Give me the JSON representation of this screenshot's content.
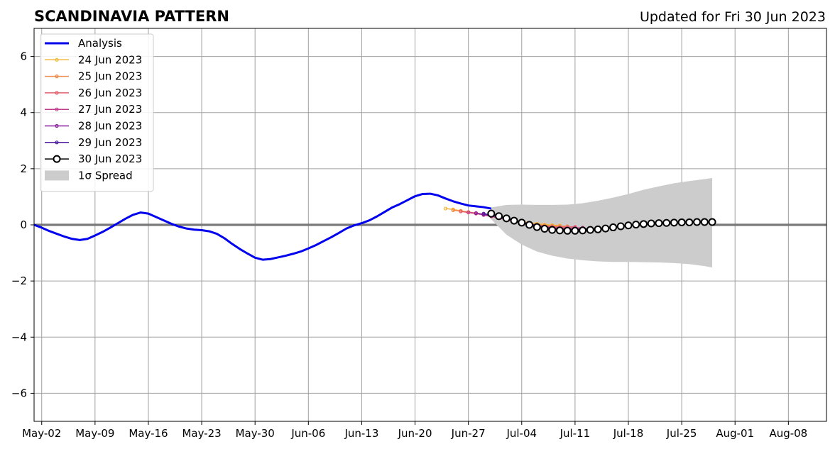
{
  "chart_data": {
    "type": "line",
    "title": "SCANDINAVIA PATTERN",
    "subtitle": "Updated for Fri 30 Jun 2023",
    "xlabel": "",
    "ylabel": "",
    "x_range": [
      "2023-05-01",
      "2023-08-13"
    ],
    "ylim": [
      -7,
      7
    ],
    "y_ticks": [
      -6,
      -4,
      -2,
      0,
      2,
      4,
      6
    ],
    "y_tick_labels": [
      "−6",
      "−4",
      "−2",
      "0",
      "2",
      "4",
      "6"
    ],
    "x_ticks": [
      "2023-05-02",
      "2023-05-09",
      "2023-05-16",
      "2023-05-23",
      "2023-05-30",
      "2023-06-06",
      "2023-06-13",
      "2023-06-20",
      "2023-06-27",
      "2023-07-04",
      "2023-07-11",
      "2023-07-18",
      "2023-07-25",
      "2023-08-01",
      "2023-08-08"
    ],
    "x_tick_labels": [
      "May-02",
      "May-09",
      "May-16",
      "May-23",
      "May-30",
      "Jun-06",
      "Jun-13",
      "Jun-20",
      "Jun-27",
      "Jul-04",
      "Jul-11",
      "Jul-18",
      "Jul-25",
      "Aug-01",
      "Aug-08"
    ],
    "grid": true,
    "legend_position": "top-left",
    "zero_line": 0,
    "series": [
      {
        "name": "Analysis",
        "color": "#0000ee",
        "style": "thick-line",
        "x": [
          "2023-05-01",
          "2023-05-02",
          "2023-05-03",
          "2023-05-04",
          "2023-05-05",
          "2023-05-06",
          "2023-05-07",
          "2023-05-08",
          "2023-05-09",
          "2023-05-10",
          "2023-05-11",
          "2023-05-12",
          "2023-05-13",
          "2023-05-14",
          "2023-05-15",
          "2023-05-16",
          "2023-05-17",
          "2023-05-18",
          "2023-05-19",
          "2023-05-20",
          "2023-05-21",
          "2023-05-22",
          "2023-05-23",
          "2023-05-24",
          "2023-05-25",
          "2023-05-26",
          "2023-05-27",
          "2023-05-28",
          "2023-05-29",
          "2023-05-30",
          "2023-05-31",
          "2023-06-01",
          "2023-06-02",
          "2023-06-03",
          "2023-06-04",
          "2023-06-05",
          "2023-06-06",
          "2023-06-07",
          "2023-06-08",
          "2023-06-09",
          "2023-06-10",
          "2023-06-11",
          "2023-06-12",
          "2023-06-13",
          "2023-06-14",
          "2023-06-15",
          "2023-06-16",
          "2023-06-17",
          "2023-06-18",
          "2023-06-19",
          "2023-06-20",
          "2023-06-21",
          "2023-06-22",
          "2023-06-23",
          "2023-06-24",
          "2023-06-25",
          "2023-06-26",
          "2023-06-27",
          "2023-06-28",
          "2023-06-29",
          "2023-06-30"
        ],
        "values": [
          0.0,
          -0.1,
          -0.22,
          -0.32,
          -0.42,
          -0.5,
          -0.54,
          -0.5,
          -0.38,
          -0.25,
          -0.1,
          0.06,
          0.22,
          0.36,
          0.44,
          0.4,
          0.28,
          0.16,
          0.04,
          -0.06,
          -0.13,
          -0.17,
          -0.19,
          -0.23,
          -0.32,
          -0.48,
          -0.68,
          -0.86,
          -1.02,
          -1.17,
          -1.24,
          -1.22,
          -1.16,
          -1.1,
          -1.03,
          -0.95,
          -0.84,
          -0.72,
          -0.58,
          -0.44,
          -0.29,
          -0.13,
          -0.02,
          0.06,
          0.16,
          0.3,
          0.46,
          0.62,
          0.74,
          0.88,
          1.02,
          1.1,
          1.11,
          1.05,
          0.94,
          0.84,
          0.76,
          0.69,
          0.66,
          0.63,
          0.58
        ]
      },
      {
        "name": "24 Jun 2023",
        "color": "#f5b73a",
        "style": "small-dots",
        "x": [
          "2023-06-24",
          "2023-06-25",
          "2023-06-26",
          "2023-06-27",
          "2023-06-28",
          "2023-06-29",
          "2023-06-30",
          "2023-07-01",
          "2023-07-02",
          "2023-07-03",
          "2023-07-04",
          "2023-07-05",
          "2023-07-06",
          "2023-07-07",
          "2023-07-08",
          "2023-07-09"
        ],
        "values": [
          0.58,
          0.55,
          0.5,
          0.46,
          0.42,
          0.38,
          0.33,
          0.27,
          0.21,
          0.16,
          0.12,
          0.08,
          0.04,
          0.01,
          -0.01,
          -0.02
        ]
      },
      {
        "name": "25 Jun 2023",
        "color": "#f08a4b",
        "style": "small-dots",
        "x": [
          "2023-06-25",
          "2023-06-26",
          "2023-06-27",
          "2023-06-28",
          "2023-06-29",
          "2023-06-30",
          "2023-07-01",
          "2023-07-02",
          "2023-07-03",
          "2023-07-04",
          "2023-07-05",
          "2023-07-06",
          "2023-07-07",
          "2023-07-08",
          "2023-07-09",
          "2023-07-10"
        ],
        "values": [
          0.52,
          0.49,
          0.45,
          0.41,
          0.37,
          0.32,
          0.26,
          0.2,
          0.14,
          0.09,
          0.05,
          0.01,
          -0.02,
          -0.04,
          -0.05,
          -0.05
        ]
      },
      {
        "name": "26 Jun 2023",
        "color": "#e35f6c",
        "style": "small-dots",
        "x": [
          "2023-06-26",
          "2023-06-27",
          "2023-06-28",
          "2023-06-29",
          "2023-06-30",
          "2023-07-01",
          "2023-07-02",
          "2023-07-03",
          "2023-07-04",
          "2023-07-05",
          "2023-07-06",
          "2023-07-07",
          "2023-07-08",
          "2023-07-09",
          "2023-07-10",
          "2023-07-11"
        ],
        "values": [
          0.48,
          0.44,
          0.4,
          0.35,
          0.3,
          0.24,
          0.18,
          0.12,
          0.07,
          0.02,
          -0.02,
          -0.05,
          -0.07,
          -0.08,
          -0.08,
          -0.07
        ]
      },
      {
        "name": "27 Jun 2023",
        "color": "#c43c8c",
        "style": "small-dots",
        "x": [
          "2023-06-27",
          "2023-06-28",
          "2023-06-29",
          "2023-06-30",
          "2023-07-01",
          "2023-07-02",
          "2023-07-03",
          "2023-07-04",
          "2023-07-05",
          "2023-07-06",
          "2023-07-07",
          "2023-07-08",
          "2023-07-09",
          "2023-07-10",
          "2023-07-11",
          "2023-07-12"
        ],
        "values": [
          0.45,
          0.41,
          0.36,
          0.31,
          0.25,
          0.19,
          0.13,
          0.07,
          0.02,
          -0.03,
          -0.07,
          -0.1,
          -0.12,
          -0.12,
          -0.11,
          -0.1
        ]
      },
      {
        "name": "28 Jun 2023",
        "color": "#8e1fa3",
        "style": "small-dots",
        "x": [
          "2023-06-28",
          "2023-06-29",
          "2023-06-30",
          "2023-07-01",
          "2023-07-02",
          "2023-07-03",
          "2023-07-04",
          "2023-07-05",
          "2023-07-06",
          "2023-07-07",
          "2023-07-08",
          "2023-07-09",
          "2023-07-10",
          "2023-07-11",
          "2023-07-12",
          "2023-07-13"
        ],
        "values": [
          0.42,
          0.37,
          0.32,
          0.26,
          0.2,
          0.14,
          0.08,
          0.02,
          -0.03,
          -0.08,
          -0.12,
          -0.15,
          -0.16,
          -0.16,
          -0.15,
          -0.13
        ]
      },
      {
        "name": "29 Jun 2023",
        "color": "#4b1a9e",
        "style": "small-dots",
        "x": [
          "2023-06-29",
          "2023-06-30",
          "2023-07-01",
          "2023-07-02",
          "2023-07-03",
          "2023-07-04",
          "2023-07-05",
          "2023-07-06",
          "2023-07-07",
          "2023-07-08",
          "2023-07-09",
          "2023-07-10",
          "2023-07-11",
          "2023-07-12",
          "2023-07-13",
          "2023-07-14"
        ],
        "values": [
          0.4,
          0.35,
          0.29,
          0.23,
          0.17,
          0.1,
          0.04,
          -0.02,
          -0.08,
          -0.13,
          -0.17,
          -0.19,
          -0.2,
          -0.19,
          -0.17,
          -0.15
        ]
      },
      {
        "name": "30 Jun 2023",
        "color": "#000000",
        "style": "open-circles",
        "x": [
          "2023-06-30",
          "2023-07-01",
          "2023-07-02",
          "2023-07-03",
          "2023-07-04",
          "2023-07-05",
          "2023-07-06",
          "2023-07-07",
          "2023-07-08",
          "2023-07-09",
          "2023-07-10",
          "2023-07-11",
          "2023-07-12",
          "2023-07-13",
          "2023-07-14",
          "2023-07-15",
          "2023-07-16",
          "2023-07-17",
          "2023-07-18",
          "2023-07-19",
          "2023-07-20",
          "2023-07-21",
          "2023-07-22",
          "2023-07-23",
          "2023-07-24",
          "2023-07-25",
          "2023-07-26",
          "2023-07-27",
          "2023-07-28",
          "2023-07-29"
        ],
        "values": [
          0.4,
          0.31,
          0.23,
          0.15,
          0.08,
          0.0,
          -0.08,
          -0.14,
          -0.18,
          -0.2,
          -0.21,
          -0.21,
          -0.2,
          -0.18,
          -0.16,
          -0.13,
          -0.09,
          -0.05,
          -0.02,
          0.01,
          0.03,
          0.05,
          0.06,
          0.07,
          0.08,
          0.09,
          0.09,
          0.1,
          0.1,
          0.1
        ]
      }
    ],
    "spread": {
      "name": "1σ Spread",
      "color": "#cccccc",
      "x": [
        "2023-06-30",
        "2023-07-02",
        "2023-07-04",
        "2023-07-06",
        "2023-07-08",
        "2023-07-10",
        "2023-07-12",
        "2023-07-14",
        "2023-07-16",
        "2023-07-18",
        "2023-07-20",
        "2023-07-22",
        "2023-07-24",
        "2023-07-26",
        "2023-07-28",
        "2023-07-29"
      ],
      "upper": [
        0.62,
        0.71,
        0.72,
        0.71,
        0.71,
        0.72,
        0.77,
        0.86,
        0.97,
        1.1,
        1.25,
        1.37,
        1.48,
        1.56,
        1.63,
        1.67
      ],
      "lower": [
        0.2,
        -0.35,
        -0.7,
        -0.95,
        -1.1,
        -1.2,
        -1.26,
        -1.3,
        -1.32,
        -1.32,
        -1.33,
        -1.34,
        -1.36,
        -1.4,
        -1.47,
        -1.52
      ]
    }
  }
}
